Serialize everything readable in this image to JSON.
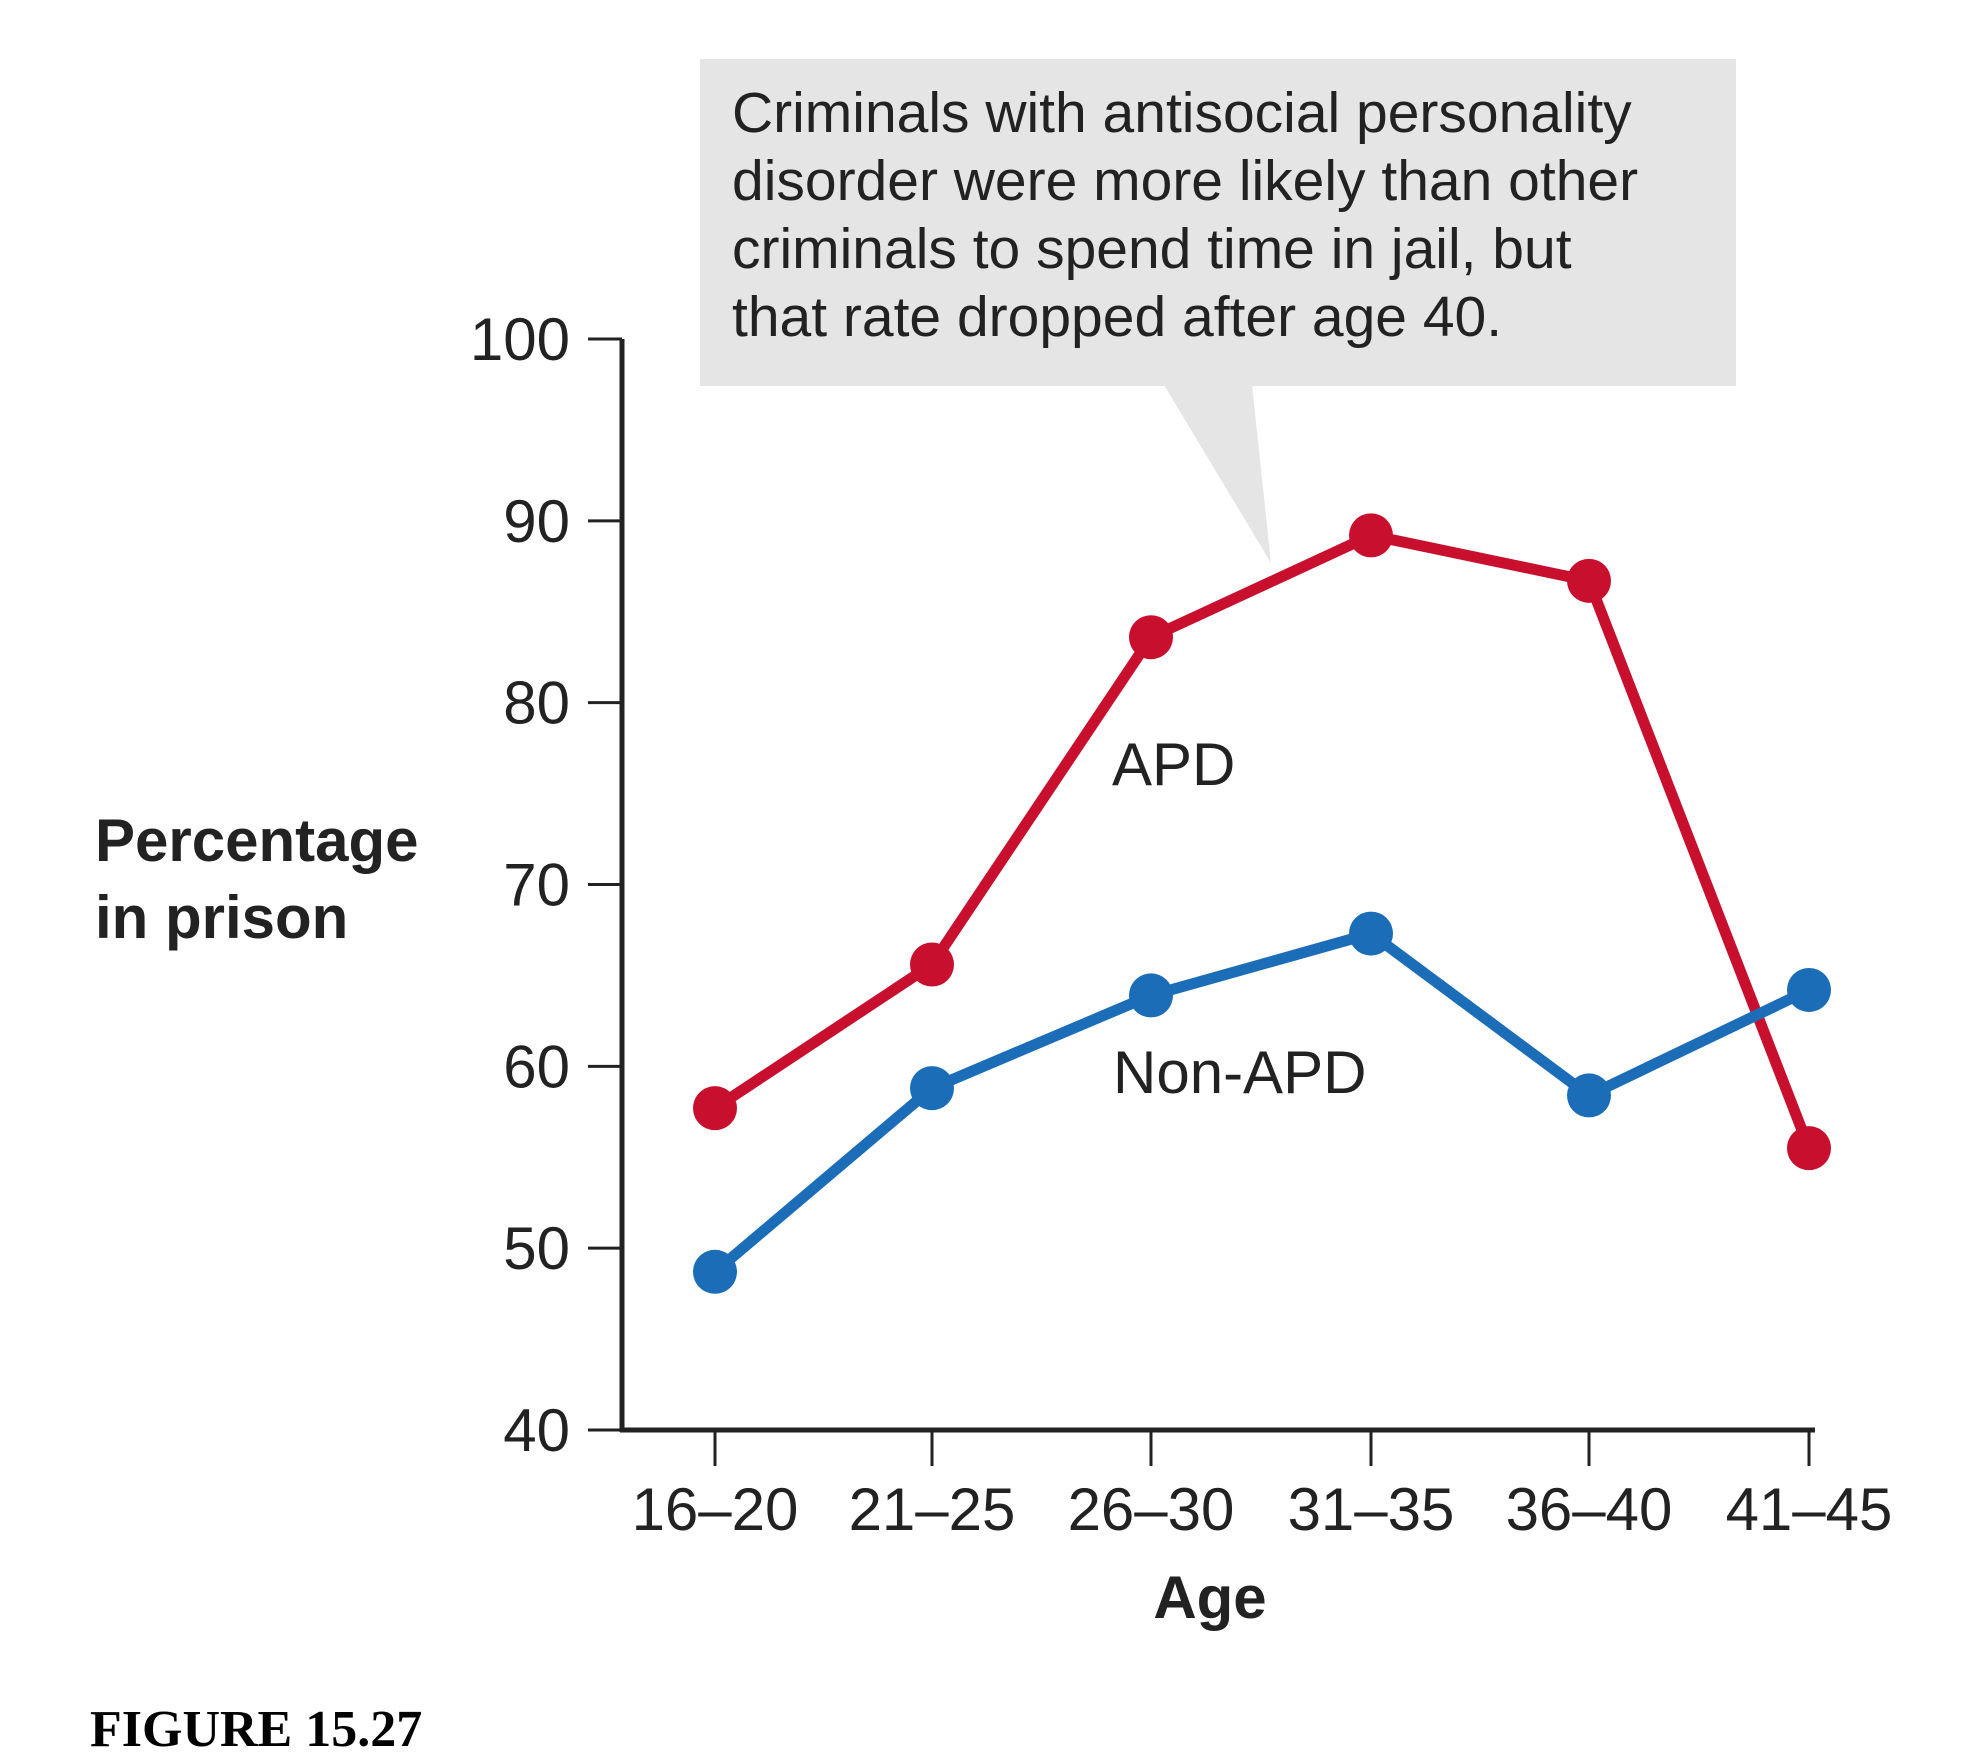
{
  "chart_data": {
    "type": "line",
    "title": "",
    "xlabel": "Age",
    "ylabel": [
      "Percentage",
      "in prison"
    ],
    "ylim": [
      40,
      100
    ],
    "yticks": [
      "40",
      "50",
      "60",
      "70",
      "80",
      "90",
      "100"
    ],
    "categories": [
      "16–20",
      "21–25",
      "26–30",
      "31–35",
      "36–40",
      "41–45"
    ],
    "grid": false,
    "series": [
      {
        "name": "APD",
        "color": "#c8102e",
        "values": [
          57.7,
          65.6,
          83.6,
          89.2,
          86.7,
          55.5
        ]
      },
      {
        "name": "Non-APD",
        "color": "#1b6db8",
        "values": [
          48.7,
          58.8,
          63.9,
          67.3,
          58.4,
          64.2
        ]
      }
    ],
    "annotation": [
      "Criminals with antisocial personality",
      "disorder were more likely than other",
      "criminals to spend time in jail, but",
      "that rate dropped after age 40."
    ]
  },
  "caption": "FIGURE 15.27"
}
